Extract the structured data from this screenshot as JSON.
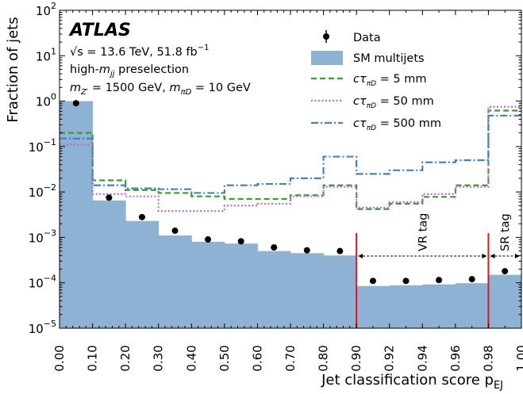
{
  "chart_data": {
    "type": "histogram",
    "xlabel": "Jet classification score p",
    "xlabel_sub": "EJ",
    "ylabel": "Fraction of jets",
    "yscale": "log",
    "ylim": [
      1e-05,
      100
    ],
    "x_bin_edges": [
      0.0,
      0.1,
      0.2,
      0.3,
      0.4,
      0.5,
      0.6,
      0.7,
      0.8,
      0.9,
      0.92,
      0.94,
      0.96,
      0.98,
      1.0
    ],
    "x_tick_labels": [
      "0.00",
      "0.10",
      "0.20",
      "0.30",
      "0.40",
      "0.50",
      "0.60",
      "0.70",
      "0.80",
      "0.90",
      "0.92",
      "0.94",
      "0.96",
      "0.98",
      "1.00"
    ],
    "y_tick_labels": [
      {
        "base": "10",
        "exp": "−5"
      },
      {
        "base": "10",
        "exp": "−4"
      },
      {
        "base": "10",
        "exp": "−3"
      },
      {
        "base": "10",
        "exp": "−2"
      },
      {
        "base": "10",
        "exp": "−1"
      },
      {
        "base": "10",
        "exp": "0"
      },
      {
        "base": "10",
        "exp": "1"
      },
      {
        "base": "10",
        "exp": "2"
      }
    ],
    "series": [
      {
        "name": "Data",
        "style": "points",
        "color": "#000000",
        "values": [
          0.9,
          0.0075,
          0.0028,
          0.0014,
          0.0009,
          0.00082,
          0.0006,
          0.00052,
          0.0005,
          0.00011,
          0.00011,
          0.000115,
          0.00012,
          0.00018
        ]
      },
      {
        "name": "SM multijets",
        "style": "filled",
        "color": "#8eb1d4",
        "values": [
          1.0,
          0.0065,
          0.0023,
          0.0011,
          0.0008,
          0.00073,
          0.0005,
          0.00045,
          0.0004,
          8.5e-05,
          8.8e-05,
          9.2e-05,
          9.8e-05,
          0.00015
        ]
      },
      {
        "name": "cτ = 5 mm",
        "style": "dashed",
        "color": "#3a9a2a",
        "values": [
          0.2,
          0.018,
          0.011,
          0.0095,
          0.008,
          0.007,
          0.007,
          0.0085,
          0.014,
          0.0042,
          0.0055,
          0.0078,
          0.014,
          0.62
        ]
      },
      {
        "name": "cτ = 50 mm",
        "style": "dotted",
        "color": "#b56fcf",
        "values": [
          0.11,
          0.009,
          0.008,
          0.0038,
          0.0038,
          0.005,
          0.0055,
          0.008,
          0.013,
          0.0045,
          0.006,
          0.009,
          0.013,
          0.75
        ]
      },
      {
        "name": "cτ = 500 mm",
        "style": "dashdot",
        "color": "#4a80b6",
        "values": [
          0.15,
          0.014,
          0.012,
          0.0115,
          0.0095,
          0.014,
          0.015,
          0.02,
          0.06,
          0.025,
          0.03,
          0.045,
          0.05,
          0.48
        ]
      }
    ],
    "region_lines": [
      0.9,
      0.98
    ],
    "region_labels": [
      {
        "text": "VR tag",
        "from": 0.9,
        "to": 0.98
      },
      {
        "text": "SR tag",
        "from": 0.98,
        "to": 1.0
      }
    ],
    "legend_placement": "top-right"
  },
  "annotations": {
    "atlas": "ATLAS",
    "lumi_line_sqrt": "√s",
    "lumi_line_rest": " = 13.6 TeV,  51.8 fb",
    "lumi_exp": "−1",
    "presel_prefix": "high-",
    "presel_m": "m",
    "presel_sub": "jj",
    "presel_suffix": " preselection",
    "mass_line": "m  = 1500 GeV,  m   = 10 GeV",
    "mass_m1": "m",
    "mass_sub1": "Z′",
    "mass_mid": " = 1500 GeV,  ",
    "mass_m2": "m",
    "mass_sub2": "πD",
    "mass_end": " = 10 GeV"
  },
  "legend": {
    "data": "Data",
    "sm": "SM multijets",
    "s5": " = 5 mm",
    "s50": " = 50 mm",
    "s500": " = 500 mm",
    "ctau": "cτ",
    "ctau_sub": "πD"
  }
}
